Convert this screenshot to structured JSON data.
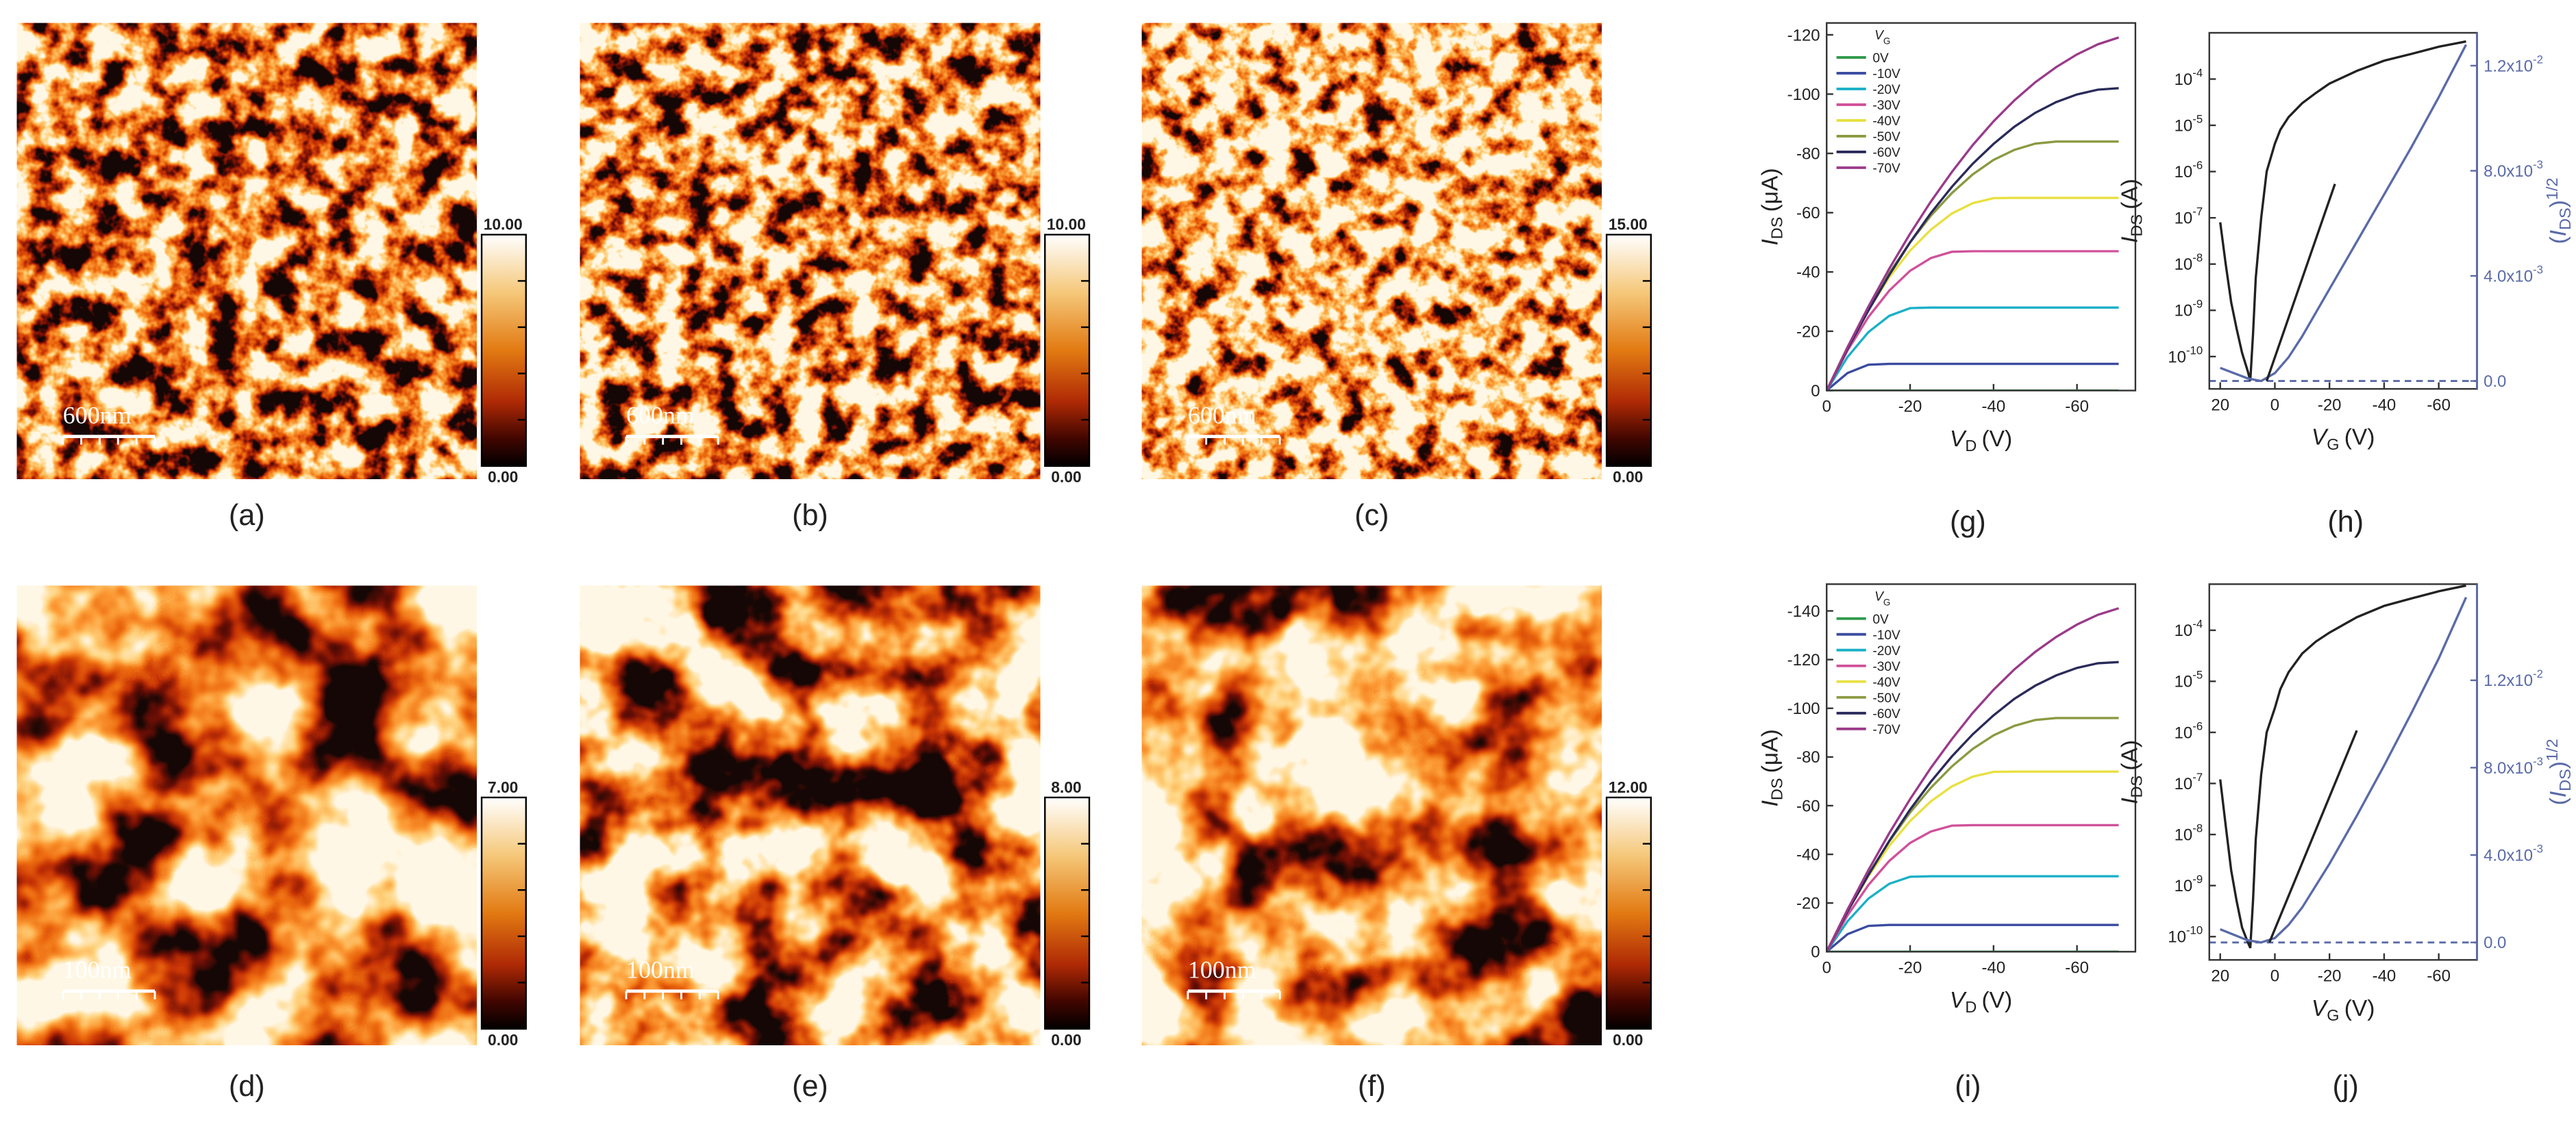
{
  "afm_panels": [
    {
      "label": "(a)",
      "scale_bar": "600nm",
      "colorbar_max": "10.00",
      "colorbar_min": "0.00"
    },
    {
      "label": "(b)",
      "scale_bar": "600nm",
      "colorbar_max": "10.00",
      "colorbar_min": "0.00"
    },
    {
      "label": "(c)",
      "scale_bar": "600nm",
      "colorbar_max": "15.00",
      "colorbar_min": "0.00"
    },
    {
      "label": "(d)",
      "scale_bar": "100nm",
      "colorbar_max": "7.00",
      "colorbar_min": "0.00"
    },
    {
      "label": "(e)",
      "scale_bar": "100nm",
      "colorbar_max": "8.00",
      "colorbar_min": "0.00"
    },
    {
      "label": "(f)",
      "scale_bar": "100nm",
      "colorbar_max": "12.00",
      "colorbar_min": "0.00"
    }
  ],
  "chart_data": [
    {
      "type": "line",
      "panel_label": "(g)",
      "x_label": {
        "main": "V",
        "sub": "D",
        "unit": "(V)"
      },
      "y_label": {
        "main": "I",
        "sub": "DS",
        "unit": "(μA)"
      },
      "legend_title": {
        "main": "V",
        "sub": "G"
      },
      "legend": "upper left",
      "x": [
        0,
        -5,
        -10,
        -15,
        -20,
        -25,
        -30,
        -35,
        -40,
        -45,
        -50,
        -55,
        -60,
        -65,
        -70
      ],
      "xlim": [
        0,
        -74
      ],
      "xticks": [
        0,
        -20,
        -40,
        -60
      ],
      "ylim": [
        0,
        -124
      ],
      "yticks": [
        0,
        -20,
        -40,
        -60,
        -80,
        -100,
        -120
      ],
      "series": [
        {
          "name": "0V",
          "color": "#2e9a4a",
          "values": [
            0,
            0,
            0,
            0,
            0,
            0,
            0,
            0,
            0,
            0,
            0,
            0,
            0,
            0,
            0
          ]
        },
        {
          "name": "-10V",
          "color": "#3a4ba0",
          "values": [
            0,
            -5.9,
            -8.7,
            -9,
            -9,
            -9,
            -9,
            -9,
            -9,
            -9,
            -9,
            -9,
            -9,
            -9,
            -9
          ]
        },
        {
          "name": "-20V",
          "color": "#1ab0c8",
          "values": [
            0,
            -11.3,
            -19.7,
            -25.2,
            -27.8,
            -28,
            -28,
            -28,
            -28,
            -28,
            -28,
            -28,
            -28,
            -28,
            -28
          ]
        },
        {
          "name": "-30V",
          "color": "#d0509a",
          "values": [
            0,
            -13.5,
            -24.8,
            -33.7,
            -40.4,
            -44.7,
            -46.8,
            -47,
            -47,
            -47,
            -47,
            -47,
            -47,
            -47,
            -47
          ]
        },
        {
          "name": "-40V",
          "color": "#e8e040",
          "values": [
            0,
            -14.6,
            -27.2,
            -38.2,
            -47.2,
            -54.3,
            -59.7,
            -63.2,
            -64.9,
            -65,
            -65,
            -65,
            -65,
            -65,
            -65
          ]
        },
        {
          "name": "-50V",
          "color": "#8a9a40",
          "values": [
            0,
            -14.6,
            -27.8,
            -39.6,
            -50,
            -59,
            -66.6,
            -72.9,
            -77.8,
            -81.2,
            -83.3,
            -84,
            -84,
            -84,
            -84
          ]
        },
        {
          "name": "-60V",
          "color": "#2a2a5a",
          "values": [
            0,
            -14.1,
            -27,
            -39,
            -50,
            -59.9,
            -68.7,
            -76.5,
            -83.2,
            -89,
            -93.7,
            -97.3,
            -99.9,
            -101.5,
            -102
          ]
        },
        {
          "name": "-70V",
          "color": "#9a3a8a",
          "values": [
            0,
            -14.6,
            -28.3,
            -41.1,
            -52.9,
            -63.8,
            -73.7,
            -82.8,
            -90.8,
            -97.9,
            -104,
            -109.1,
            -113.4,
            -116.8,
            -119.1
          ]
        }
      ]
    },
    {
      "type": "line",
      "panel_label": "(h)",
      "log_y": true,
      "x_label": {
        "main": "V",
        "sub": "G",
        "unit": "(V)"
      },
      "y_label": {
        "main": "I",
        "sub": "DS",
        "unit": "(A)"
      },
      "y2_label": {
        "open": "(",
        "main": "I",
        "sub": "DS",
        "close": ")",
        "sup": "1/2"
      },
      "xlim": [
        24,
        -74
      ],
      "xticks": [
        20,
        0,
        -20,
        -40,
        -60
      ],
      "ylim": [
        2e-11,
        0.001
      ],
      "yticks": [
        {
          "value": 1e-10,
          "label": "10",
          "exponent": "-10"
        },
        {
          "value": 1e-09,
          "label": "10",
          "exponent": "-9"
        },
        {
          "value": 1e-08,
          "label": "10",
          "exponent": "-8"
        },
        {
          "value": 1e-07,
          "label": "10",
          "exponent": "-7"
        },
        {
          "value": 1e-06,
          "label": "10",
          "exponent": "-6"
        },
        {
          "value": 1e-05,
          "label": "10",
          "exponent": "-5"
        },
        {
          "value": 0.0001,
          "label": "10",
          "exponent": "-4"
        }
      ],
      "y2lim": [
        -0.0003,
        0.01325
      ],
      "y2ticks": [
        {
          "value": 0,
          "label": "0.0"
        },
        {
          "value": 0.004,
          "label": "4.0x10",
          "exponent": "-3"
        },
        {
          "value": 0.008,
          "label": "8.0x10",
          "exponent": "-3"
        },
        {
          "value": 0.012,
          "label": "1.2x10",
          "exponent": "-2"
        }
      ],
      "y2_color": "#5a6aa8",
      "reference_line": {
        "value": 0,
        "axis": "y2",
        "color": "#5a6aa8",
        "dash": true
      },
      "series": [
        {
          "color": "#222222",
          "x": [
            20,
            18,
            16,
            14,
            12,
            10,
            9,
            8,
            7,
            5,
            3,
            0,
            -2,
            -5,
            -10,
            -15,
            -20,
            -30,
            -40,
            -50,
            -60,
            -70
          ],
          "values": [
            8e-08,
            1e-08,
            1.5e-09,
            4e-10,
            1.2e-10,
            5e-11,
            3e-11,
            3e-10,
            5e-09,
            1e-07,
            1e-06,
            4e-06,
            8e-06,
            1.5e-05,
            3e-05,
            5e-05,
            8e-05,
            0.00015,
            0.00025,
            0.00035,
            0.0005,
            0.00065
          ]
        },
        {
          "color": "#5a6aa8",
          "axis": "y2",
          "x": [
            20,
            10,
            5,
            0,
            -5,
            -10,
            -20,
            -30,
            -40,
            -50,
            -60,
            -70
          ],
          "values": [
            0.0005,
            0.0001,
            0,
            0.0003,
            0.0009,
            0.0017,
            0.0035,
            0.0053,
            0.0071,
            0.0089,
            0.0108,
            0.0128
          ]
        },
        {
          "color": "#222222",
          "axis": "y2",
          "x": [
            3,
            -22
          ],
          "values": [
            0,
            0.0075
          ]
        }
      ]
    },
    {
      "type": "line",
      "panel_label": "(i)",
      "x_label": {
        "main": "V",
        "sub": "D",
        "unit": "(V)"
      },
      "y_label": {
        "main": "I",
        "sub": "DS",
        "unit": "(μA)"
      },
      "legend_title": {
        "main": "V",
        "sub": "G"
      },
      "legend": "upper left",
      "x": [
        0,
        -5,
        -10,
        -15,
        -20,
        -25,
        -30,
        -35,
        -40,
        -45,
        -50,
        -55,
        -60,
        -65,
        -70
      ],
      "xlim": [
        0,
        -74
      ],
      "xticks": [
        0,
        -20,
        -40,
        -60
      ],
      "ylim": [
        0,
        -151
      ],
      "yticks": [
        0,
        -20,
        -40,
        -60,
        -80,
        -100,
        -120,
        -140
      ],
      "series": [
        {
          "name": "0V",
          "color": "#2e9a4a",
          "values": [
            0,
            0,
            0,
            0,
            0,
            0,
            0,
            0,
            0,
            0,
            0,
            0,
            0,
            0,
            0
          ]
        },
        {
          "name": "-10V",
          "color": "#3a4ba0",
          "values": [
            0,
            -7.2,
            -10.6,
            -11,
            -11,
            -11,
            -11,
            -11,
            -11,
            -11,
            -11,
            -11,
            -11,
            -11,
            -11
          ]
        },
        {
          "name": "-20V",
          "color": "#1ab0c8",
          "values": [
            0,
            -12.5,
            -21.8,
            -27.9,
            -30.8,
            -31,
            -31,
            -31,
            -31,
            -31,
            -31,
            -31,
            -31,
            -31,
            -31
          ]
        },
        {
          "name": "-30V",
          "color": "#d0509a",
          "values": [
            0,
            -14.9,
            -27.4,
            -37.3,
            -44.7,
            -49.4,
            -51.8,
            -52,
            -52,
            -52,
            -52,
            -52,
            -52,
            -52,
            -52
          ]
        },
        {
          "name": "-40V",
          "color": "#e8e040",
          "values": [
            0,
            -16.6,
            -31,
            -43.5,
            -53.7,
            -61.8,
            -67.9,
            -71.9,
            -73.9,
            -74,
            -74,
            -74,
            -74,
            -74,
            -74
          ]
        },
        {
          "name": "-50V",
          "color": "#8a9a40",
          "values": [
            0,
            -16.7,
            -31.8,
            -45.3,
            -57.2,
            -67.4,
            -76.1,
            -83.3,
            -88.9,
            -92.8,
            -95.2,
            -96,
            -96,
            -96,
            -96
          ]
        },
        {
          "name": "-60V",
          "color": "#2a2a5a",
          "values": [
            0,
            -16.5,
            -31.5,
            -45.5,
            -58.4,
            -69.9,
            -80.2,
            -89.3,
            -97.1,
            -103.9,
            -109.3,
            -113.5,
            -116.6,
            -118.5,
            -119
          ]
        },
        {
          "name": "-70V",
          "color": "#9a3a8a",
          "values": [
            0,
            -17.3,
            -33.5,
            -48.7,
            -62.7,
            -75.6,
            -87.3,
            -98.1,
            -107.6,
            -116,
            -123.2,
            -129.3,
            -134.4,
            -138.4,
            -141.1
          ]
        }
      ]
    },
    {
      "type": "line",
      "panel_label": "(j)",
      "log_y": true,
      "x_label": {
        "main": "V",
        "sub": "G",
        "unit": "(V)"
      },
      "y_label": {
        "main": "I",
        "sub": "DS",
        "unit": "(A)"
      },
      "y2_label": {
        "open": "(",
        "main": "I",
        "sub": "DS",
        "close": ")",
        "sup": "1/2"
      },
      "xlim": [
        24,
        -74
      ],
      "xticks": [
        20,
        0,
        -20,
        -40,
        -60
      ],
      "ylim": [
        3.5e-11,
        0.0008
      ],
      "yticks": [
        {
          "value": 1e-10,
          "label": "10",
          "exponent": "-10"
        },
        {
          "value": 1e-09,
          "label": "10",
          "exponent": "-9"
        },
        {
          "value": 1e-08,
          "label": "10",
          "exponent": "-8"
        },
        {
          "value": 1e-07,
          "label": "10",
          "exponent": "-7"
        },
        {
          "value": 1e-06,
          "label": "10",
          "exponent": "-6"
        },
        {
          "value": 1e-05,
          "label": "10",
          "exponent": "-5"
        },
        {
          "value": 0.0001,
          "label": "10",
          "exponent": "-4"
        }
      ],
      "y2lim": [
        -0.0008,
        0.0164
      ],
      "y2ticks": [
        {
          "value": 0,
          "label": "0.0"
        },
        {
          "value": 0.004,
          "label": "4.0x10",
          "exponent": "-3"
        },
        {
          "value": 0.008,
          "label": "8.0x10",
          "exponent": "-3"
        },
        {
          "value": 0.012,
          "label": "1.2x10",
          "exponent": "-2"
        }
      ],
      "y2_color": "#5a6aa8",
      "reference_line": {
        "value": 0,
        "axis": "y2",
        "color": "#5a6aa8",
        "dash": true
      },
      "series": [
        {
          "color": "#222222",
          "x": [
            20,
            18,
            16,
            14,
            12,
            10,
            9,
            8,
            7,
            5,
            3,
            0,
            -2,
            -5,
            -10,
            -15,
            -20,
            -30,
            -40,
            -50,
            -60,
            -70
          ],
          "values": [
            1.2e-07,
            1.5e-08,
            2e-09,
            5e-10,
            1.5e-10,
            8e-11,
            6e-11,
            5e-10,
            8e-09,
            1.5e-07,
            1e-06,
            3e-06,
            7e-06,
            1.5e-05,
            3.5e-05,
            6e-05,
            9e-05,
            0.00018,
            0.0003,
            0.00042,
            0.00058,
            0.00075
          ]
        },
        {
          "color": "#5a6aa8",
          "axis": "y2",
          "x": [
            20,
            10,
            5,
            0,
            -5,
            -10,
            -20,
            -30,
            -40,
            -50,
            -60,
            -70
          ],
          "values": [
            0.0006,
            0.0001,
            0,
            0.0002,
            0.0008,
            0.0016,
            0.0036,
            0.0058,
            0.0081,
            0.0105,
            0.013,
            0.0158
          ]
        },
        {
          "color": "#222222",
          "axis": "y2",
          "x": [
            2,
            -30
          ],
          "values": [
            0,
            0.0097
          ]
        }
      ]
    }
  ]
}
